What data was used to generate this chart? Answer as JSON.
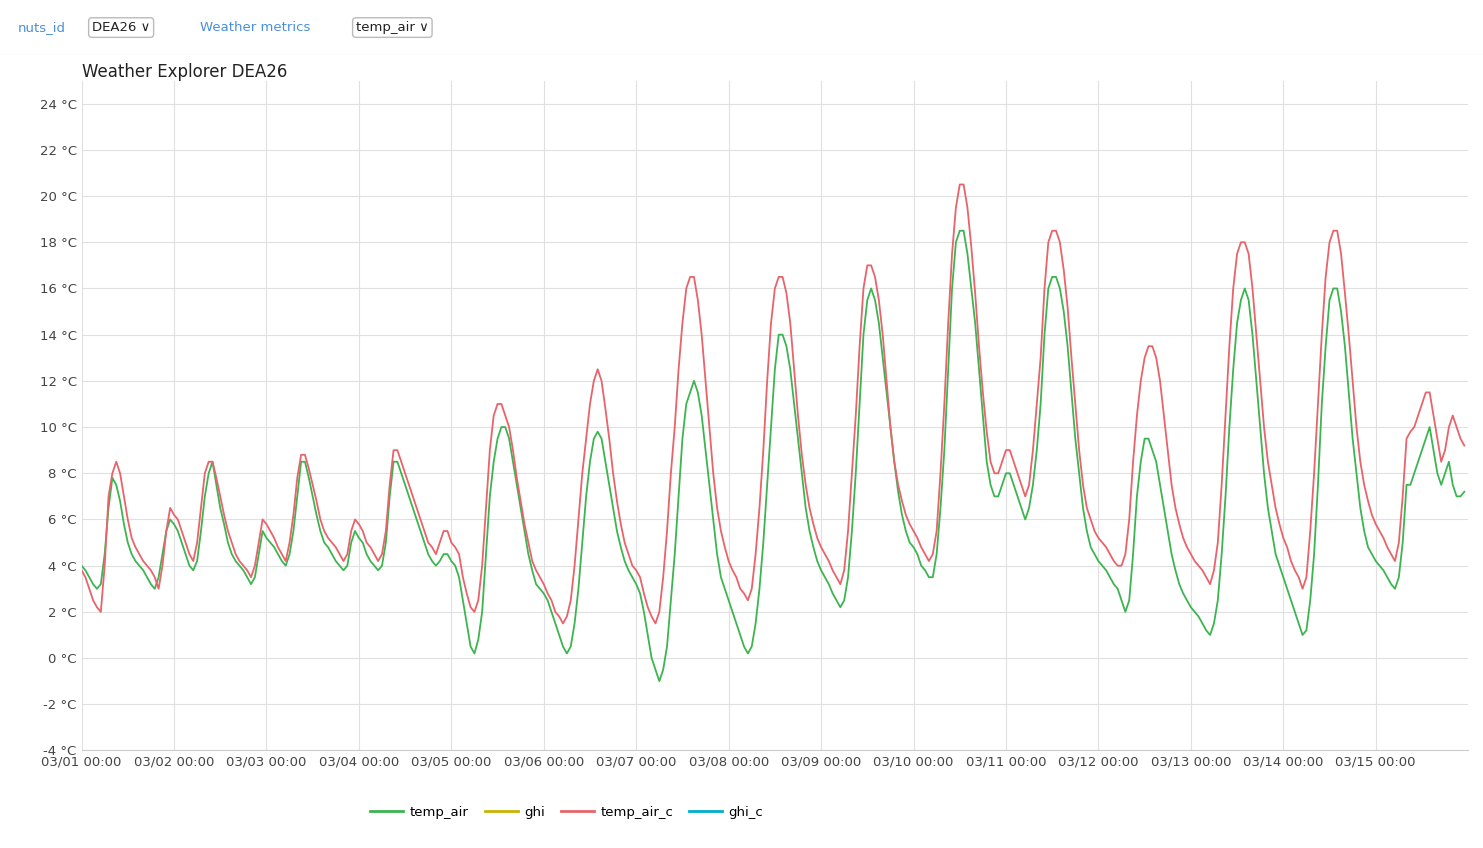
{
  "title": "Weather Explorer DEA26",
  "ymin": -4,
  "ymax": 25,
  "yticks": [
    -4,
    -2,
    0,
    2,
    4,
    6,
    8,
    10,
    12,
    14,
    16,
    18,
    20,
    22,
    24
  ],
  "ytick_labels": [
    "-4 °C",
    "-2 °C",
    "0 °C",
    "2 °C",
    "4 °C",
    "6 °C",
    "8 °C",
    "10 °C",
    "12 °C",
    "14 °C",
    "16 °C",
    "18 °C",
    "20 °C",
    "22 °C",
    "24 °C"
  ],
  "line_green_color": "#3cb550",
  "line_red_color": "#e8636a",
  "line_width": 1.3,
  "background_color": "#ffffff",
  "grid_color": "#e0e0e0",
  "legend_items": [
    "temp_air",
    "ghi",
    "temp_air_c",
    "ghi_c"
  ],
  "legend_colors": [
    "#3cb550",
    "#c8b400",
    "#e8636a",
    "#00b0c8"
  ],
  "toolbar_bg": "#f8f8f8",
  "n_days": 15,
  "hours_per_day": 24,
  "x_tick_positions": [
    0,
    24,
    48,
    72,
    96,
    120,
    144,
    168,
    192,
    216,
    240,
    264,
    288,
    312,
    336
  ],
  "x_tick_labels": [
    "03/01 00:00",
    "03/02 00:00",
    "03/03 00:00",
    "03/04 00:00",
    "03/05 00:00",
    "03/06 00:00",
    "03/07 00:00",
    "03/08 00:00",
    "03/09 00:00",
    "03/10 00:00",
    "03/11 00:00",
    "03/12 00:00",
    "03/13 00:00",
    "03/14 00:00",
    "03/15 00:00"
  ],
  "temp_air": [
    4.0,
    3.8,
    3.5,
    3.2,
    3.0,
    3.2,
    4.5,
    6.5,
    7.8,
    7.5,
    6.8,
    5.8,
    5.0,
    4.5,
    4.2,
    4.0,
    3.8,
    3.5,
    3.2,
    3.0,
    3.5,
    4.5,
    5.5,
    6.0,
    5.8,
    5.5,
    5.0,
    4.5,
    4.0,
    3.8,
    4.2,
    5.5,
    7.0,
    8.0,
    8.5,
    7.5,
    6.5,
    5.8,
    5.0,
    4.5,
    4.2,
    4.0,
    3.8,
    3.5,
    3.2,
    3.5,
    4.5,
    5.5,
    5.2,
    5.0,
    4.8,
    4.5,
    4.2,
    4.0,
    4.5,
    5.5,
    7.0,
    8.5,
    8.5,
    7.8,
    7.0,
    6.2,
    5.5,
    5.0,
    4.8,
    4.5,
    4.2,
    4.0,
    3.8,
    4.0,
    5.0,
    5.5,
    5.2,
    5.0,
    4.5,
    4.2,
    4.0,
    3.8,
    4.0,
    5.0,
    7.0,
    8.5,
    8.5,
    8.0,
    7.5,
    7.0,
    6.5,
    6.0,
    5.5,
    5.0,
    4.5,
    4.2,
    4.0,
    4.2,
    4.5,
    4.5,
    4.2,
    4.0,
    3.5,
    2.5,
    1.5,
    0.5,
    0.2,
    0.8,
    2.0,
    4.5,
    7.0,
    8.5,
    9.5,
    10.0,
    10.0,
    9.5,
    8.5,
    7.5,
    6.5,
    5.5,
    4.5,
    3.8,
    3.2,
    3.0,
    2.8,
    2.5,
    2.0,
    1.5,
    1.0,
    0.5,
    0.2,
    0.5,
    1.5,
    3.0,
    5.0,
    7.0,
    8.5,
    9.5,
    9.8,
    9.5,
    8.5,
    7.5,
    6.5,
    5.5,
    4.8,
    4.2,
    3.8,
    3.5,
    3.2,
    2.8,
    2.0,
    1.0,
    0.0,
    -0.5,
    -1.0,
    -0.5,
    0.5,
    2.5,
    4.5,
    7.0,
    9.5,
    11.0,
    11.5,
    12.0,
    11.5,
    10.5,
    9.0,
    7.5,
    6.0,
    4.5,
    3.5,
    3.0,
    2.5,
    2.0,
    1.5,
    1.0,
    0.5,
    0.2,
    0.5,
    1.5,
    3.0,
    5.0,
    7.5,
    10.0,
    12.5,
    14.0,
    14.0,
    13.5,
    12.5,
    11.0,
    9.5,
    8.0,
    6.5,
    5.5,
    4.8,
    4.2,
    3.8,
    3.5,
    3.2,
    2.8,
    2.5,
    2.2,
    2.5,
    3.5,
    5.5,
    8.0,
    11.0,
    14.0,
    15.5,
    16.0,
    15.5,
    14.5,
    13.0,
    11.5,
    10.0,
    8.5,
    7.2,
    6.2,
    5.5,
    5.0,
    4.8,
    4.5,
    4.0,
    3.8,
    3.5,
    3.5,
    4.5,
    6.5,
    9.0,
    12.5,
    16.0,
    18.0,
    18.5,
    18.5,
    17.5,
    16.0,
    14.5,
    12.5,
    10.5,
    8.5,
    7.5,
    7.0,
    7.0,
    7.5,
    8.0,
    8.0,
    7.5,
    7.0,
    6.5,
    6.0,
    6.5,
    7.5,
    9.0,
    11.0,
    14.0,
    16.0,
    16.5,
    16.5,
    16.0,
    15.0,
    13.5,
    11.5,
    9.5,
    8.0,
    6.5,
    5.5,
    4.8,
    4.5,
    4.2,
    4.0,
    3.8,
    3.5,
    3.2,
    3.0,
    2.5,
    2.0,
    2.5,
    4.5,
    7.0,
    8.5,
    9.5,
    9.5,
    9.0,
    8.5,
    7.5,
    6.5,
    5.5,
    4.5,
    3.8,
    3.2,
    2.8,
    2.5,
    2.2,
    2.0,
    1.8,
    1.5,
    1.2,
    1.0,
    1.5,
    2.5,
    4.5,
    7.0,
    10.0,
    12.5,
    14.5,
    15.5,
    16.0,
    15.5,
    14.0,
    12.0,
    10.0,
    8.0,
    6.5,
    5.5,
    4.5,
    4.0,
    3.5,
    3.0,
    2.5,
    2.0,
    1.5,
    1.0,
    1.2,
    2.5,
    4.5,
    7.5,
    11.0,
    13.5,
    15.5,
    16.0,
    16.0,
    15.0,
    13.5,
    11.5,
    9.5,
    8.0,
    6.5,
    5.5,
    4.8,
    4.5,
    4.2,
    4.0,
    3.8,
    3.5,
    3.2,
    3.0,
    3.5,
    5.0,
    7.5,
    7.5,
    8.0,
    8.5,
    9.0,
    9.5,
    10.0,
    9.0,
    8.0,
    7.5,
    8.0,
    8.5,
    7.5,
    7.0,
    7.0,
    7.2
  ],
  "temp_air_c": [
    3.8,
    3.5,
    3.0,
    2.5,
    2.2,
    2.0,
    4.0,
    7.0,
    8.0,
    8.5,
    8.0,
    7.0,
    6.0,
    5.2,
    4.8,
    4.5,
    4.2,
    4.0,
    3.8,
    3.5,
    3.0,
    4.0,
    5.5,
    6.5,
    6.2,
    6.0,
    5.5,
    5.0,
    4.5,
    4.2,
    5.0,
    6.5,
    8.0,
    8.5,
    8.5,
    7.8,
    7.0,
    6.2,
    5.5,
    5.0,
    4.5,
    4.2,
    4.0,
    3.8,
    3.5,
    4.0,
    5.0,
    6.0,
    5.8,
    5.5,
    5.2,
    4.8,
    4.5,
    4.2,
    5.0,
    6.2,
    7.8,
    8.8,
    8.8,
    8.2,
    7.5,
    6.8,
    6.0,
    5.5,
    5.2,
    5.0,
    4.8,
    4.5,
    4.2,
    4.5,
    5.5,
    6.0,
    5.8,
    5.5,
    5.0,
    4.8,
    4.5,
    4.2,
    4.5,
    5.5,
    7.5,
    9.0,
    9.0,
    8.5,
    8.0,
    7.5,
    7.0,
    6.5,
    6.0,
    5.5,
    5.0,
    4.8,
    4.5,
    5.0,
    5.5,
    5.5,
    5.0,
    4.8,
    4.5,
    3.5,
    2.8,
    2.2,
    2.0,
    2.5,
    4.0,
    6.5,
    9.0,
    10.5,
    11.0,
    11.0,
    10.5,
    10.0,
    9.0,
    7.8,
    6.8,
    5.8,
    5.0,
    4.2,
    3.8,
    3.5,
    3.2,
    2.8,
    2.5,
    2.0,
    1.8,
    1.5,
    1.8,
    2.5,
    4.0,
    6.0,
    8.0,
    9.5,
    11.0,
    12.0,
    12.5,
    12.0,
    10.8,
    9.5,
    8.0,
    6.8,
    5.8,
    5.0,
    4.5,
    4.0,
    3.8,
    3.5,
    2.8,
    2.2,
    1.8,
    1.5,
    2.0,
    3.5,
    5.5,
    8.0,
    10.0,
    12.5,
    14.5,
    16.0,
    16.5,
    16.5,
    15.5,
    14.0,
    12.0,
    10.0,
    8.0,
    6.5,
    5.5,
    4.8,
    4.2,
    3.8,
    3.5,
    3.0,
    2.8,
    2.5,
    3.0,
    4.5,
    6.5,
    9.0,
    12.0,
    14.5,
    16.0,
    16.5,
    16.5,
    15.8,
    14.5,
    12.5,
    10.5,
    8.8,
    7.5,
    6.5,
    5.8,
    5.2,
    4.8,
    4.5,
    4.2,
    3.8,
    3.5,
    3.2,
    3.8,
    5.5,
    8.0,
    10.5,
    13.5,
    16.0,
    17.0,
    17.0,
    16.5,
    15.5,
    14.0,
    12.0,
    10.0,
    8.5,
    7.5,
    6.8,
    6.2,
    5.8,
    5.5,
    5.2,
    4.8,
    4.5,
    4.2,
    4.5,
    5.5,
    8.0,
    11.0,
    14.5,
    17.5,
    19.5,
    20.5,
    20.5,
    19.5,
    17.8,
    15.8,
    13.5,
    11.5,
    9.8,
    8.5,
    8.0,
    8.0,
    8.5,
    9.0,
    9.0,
    8.5,
    8.0,
    7.5,
    7.0,
    7.5,
    9.0,
    11.0,
    13.0,
    16.0,
    18.0,
    18.5,
    18.5,
    18.0,
    16.8,
    15.2,
    13.0,
    11.0,
    9.0,
    7.5,
    6.5,
    6.0,
    5.5,
    5.2,
    5.0,
    4.8,
    4.5,
    4.2,
    4.0,
    4.0,
    4.5,
    6.0,
    8.5,
    10.5,
    12.0,
    13.0,
    13.5,
    13.5,
    13.0,
    12.0,
    10.5,
    9.0,
    7.5,
    6.5,
    5.8,
    5.2,
    4.8,
    4.5,
    4.2,
    4.0,
    3.8,
    3.5,
    3.2,
    3.8,
    5.0,
    7.5,
    10.5,
    13.5,
    16.0,
    17.5,
    18.0,
    18.0,
    17.5,
    16.0,
    14.0,
    12.0,
    10.0,
    8.5,
    7.5,
    6.5,
    5.8,
    5.2,
    4.8,
    4.2,
    3.8,
    3.5,
    3.0,
    3.5,
    5.5,
    8.0,
    11.0,
    14.0,
    16.5,
    18.0,
    18.5,
    18.5,
    17.5,
    15.8,
    14.0,
    12.0,
    10.0,
    8.5,
    7.5,
    6.8,
    6.2,
    5.8,
    5.5,
    5.2,
    4.8,
    4.5,
    4.2,
    5.0,
    7.0,
    9.5,
    9.8,
    10.0,
    10.5,
    11.0,
    11.5,
    11.5,
    10.5,
    9.5,
    8.5,
    9.0,
    10.0,
    10.5,
    10.0,
    9.5,
    9.2
  ]
}
